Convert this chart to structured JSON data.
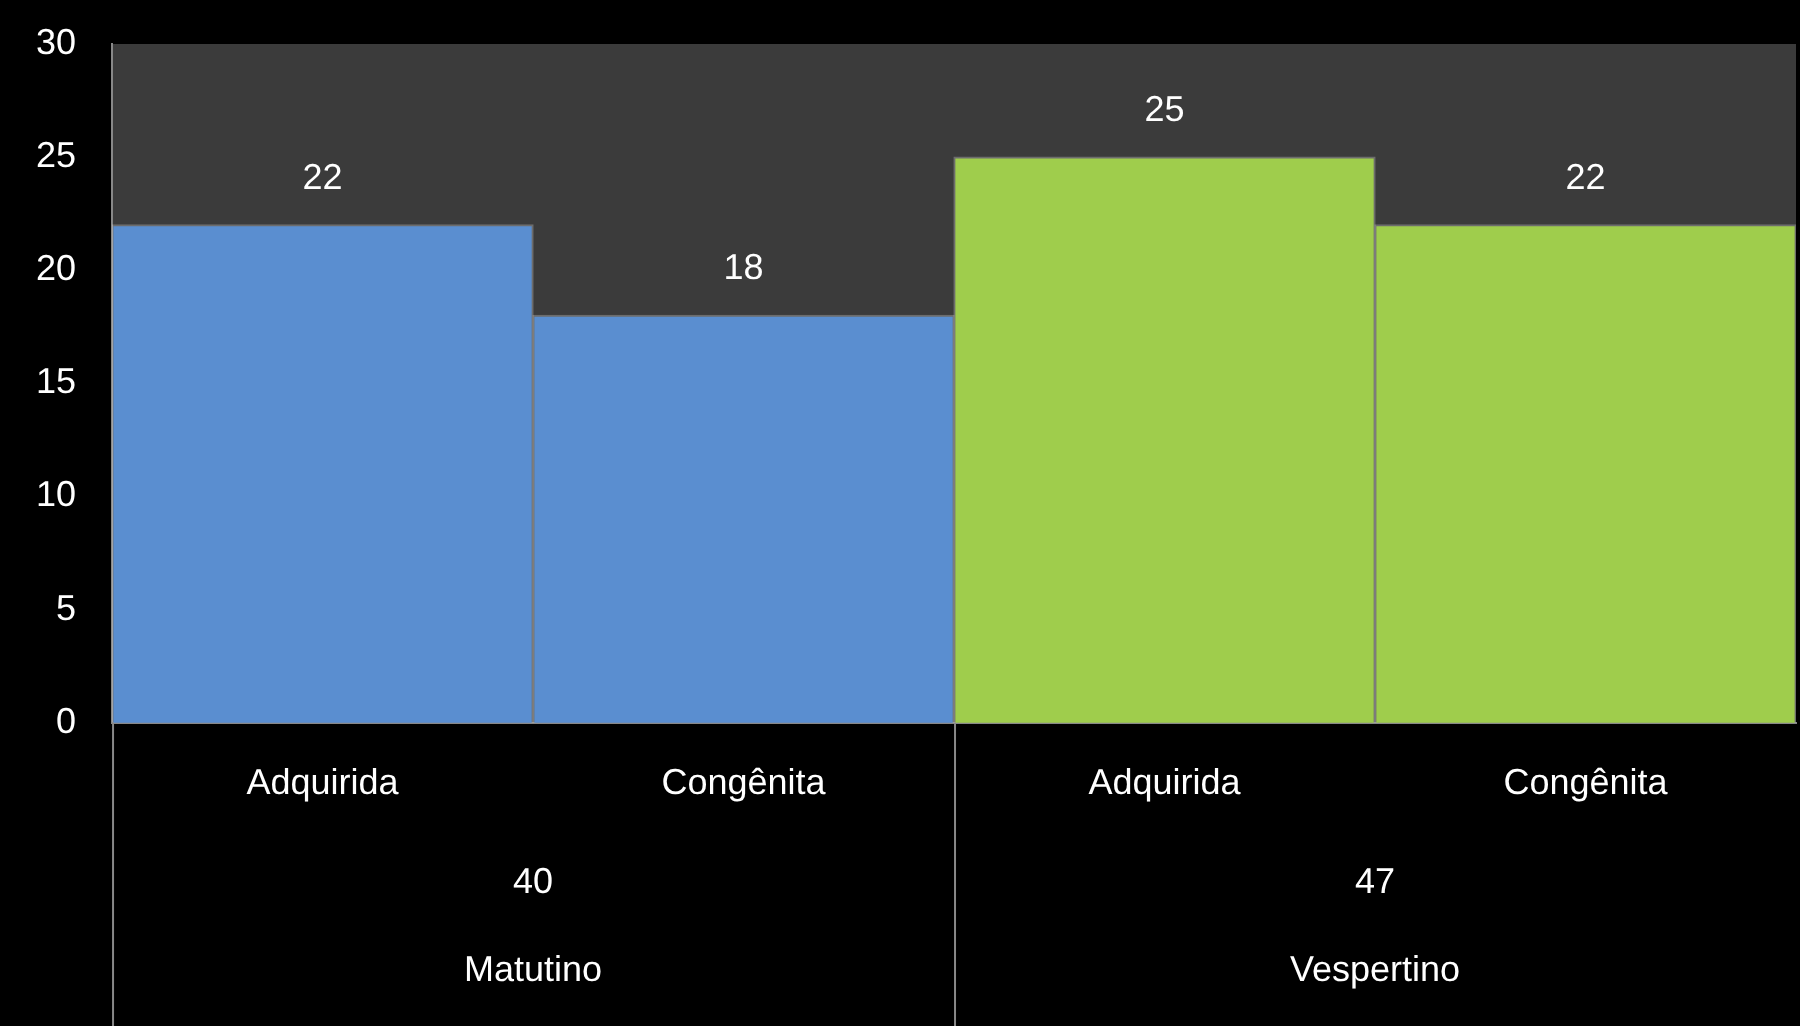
{
  "chart_data": {
    "type": "bar",
    "categories": [
      "Adquirida",
      "Congênita",
      "Adquirida",
      "Congênita"
    ],
    "values": [
      22,
      18,
      25,
      22
    ],
    "colors": [
      "#5a8ed0",
      "#5a8ed0",
      "#9fcd4c",
      "#9fcd4c"
    ],
    "ylim": [
      0,
      30
    ],
    "yticks": [
      0,
      5,
      10,
      15,
      20,
      25,
      30
    ],
    "grid": false,
    "legend": false,
    "data_labels": true,
    "annotations": [
      "40",
      "Matutino",
      "47",
      "Vespertino"
    ]
  }
}
